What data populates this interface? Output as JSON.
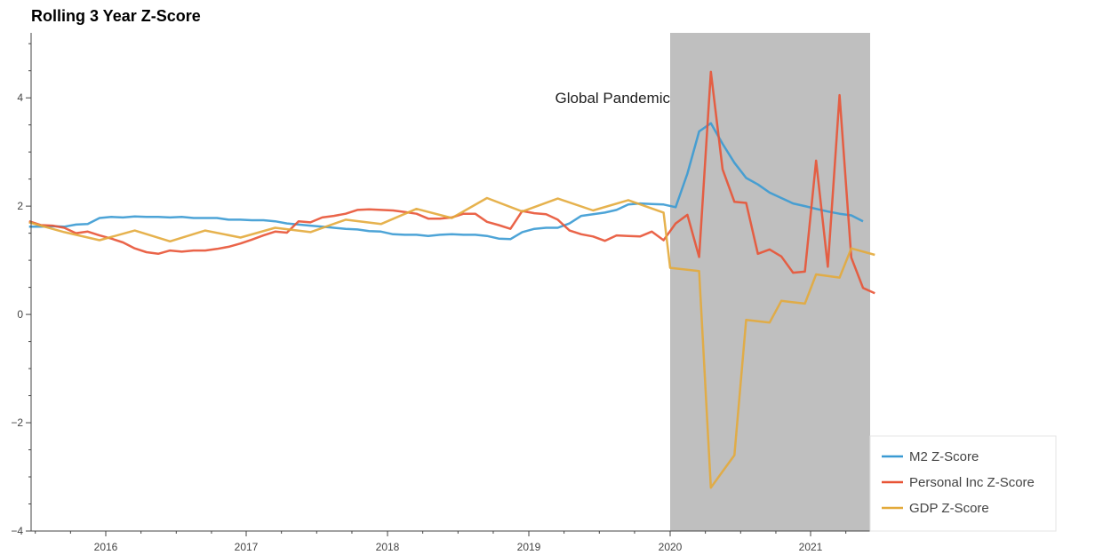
{
  "chart_data": {
    "type": "line",
    "title": "Rolling 3 Year Z-Score",
    "xlabel": "",
    "ylabel": "",
    "x_range": [
      "2015-06-15",
      "2021-06-15"
    ],
    "ylim": [
      -4,
      5.2
    ],
    "x_ticks": [
      "2016",
      "2017",
      "2018",
      "2019",
      "2020",
      "2021"
    ],
    "y_ticks": [
      -4,
      -2,
      0,
      2,
      4
    ],
    "y_tick_labels": [
      "−4",
      "−2",
      "0",
      "2",
      "4"
    ],
    "grid": false,
    "legend_position": "bottom-right",
    "shaded_region": {
      "x_start": "2020-01-01",
      "x_end": "2021-06-15",
      "color": "#bfbfbf"
    },
    "annotations": [
      {
        "text": "Global Pandemic",
        "x": "2020-01-01",
        "y": 4.0,
        "align": "right"
      }
    ],
    "series": [
      {
        "name": "M2 Z-Score",
        "color": "#3a9ad3",
        "points": [
          [
            "2015-06-15",
            1.62
          ],
          [
            "2015-07-15",
            1.62
          ],
          [
            "2015-08-15",
            1.63
          ],
          [
            "2015-09-15",
            1.62
          ],
          [
            "2015-10-15",
            1.66
          ],
          [
            "2015-11-15",
            1.67
          ],
          [
            "2015-12-15",
            1.78
          ],
          [
            "2016-01-15",
            1.8
          ],
          [
            "2016-02-15",
            1.79
          ],
          [
            "2016-03-15",
            1.81
          ],
          [
            "2016-04-15",
            1.8
          ],
          [
            "2016-05-15",
            1.8
          ],
          [
            "2016-06-15",
            1.79
          ],
          [
            "2016-07-15",
            1.8
          ],
          [
            "2016-08-15",
            1.78
          ],
          [
            "2016-09-15",
            1.78
          ],
          [
            "2016-10-15",
            1.78
          ],
          [
            "2016-11-15",
            1.75
          ],
          [
            "2016-12-15",
            1.75
          ],
          [
            "2017-01-15",
            1.74
          ],
          [
            "2017-02-15",
            1.74
          ],
          [
            "2017-03-15",
            1.72
          ],
          [
            "2017-04-15",
            1.68
          ],
          [
            "2017-05-15",
            1.66
          ],
          [
            "2017-06-15",
            1.64
          ],
          [
            "2017-07-15",
            1.62
          ],
          [
            "2017-08-15",
            1.6
          ],
          [
            "2017-09-15",
            1.58
          ],
          [
            "2017-10-15",
            1.57
          ],
          [
            "2017-11-15",
            1.54
          ],
          [
            "2017-12-15",
            1.53
          ],
          [
            "2018-01-15",
            1.48
          ],
          [
            "2018-02-15",
            1.47
          ],
          [
            "2018-03-15",
            1.47
          ],
          [
            "2018-04-15",
            1.45
          ],
          [
            "2018-05-15",
            1.47
          ],
          [
            "2018-06-15",
            1.48
          ],
          [
            "2018-07-15",
            1.47
          ],
          [
            "2018-08-15",
            1.47
          ],
          [
            "2018-09-15",
            1.45
          ],
          [
            "2018-10-15",
            1.4
          ],
          [
            "2018-11-15",
            1.39
          ],
          [
            "2018-12-15",
            1.52
          ],
          [
            "2019-01-15",
            1.58
          ],
          [
            "2019-02-15",
            1.6
          ],
          [
            "2019-03-15",
            1.6
          ],
          [
            "2019-04-15",
            1.68
          ],
          [
            "2019-05-15",
            1.82
          ],
          [
            "2019-06-15",
            1.85
          ],
          [
            "2019-07-15",
            1.88
          ],
          [
            "2019-08-15",
            1.93
          ],
          [
            "2019-09-15",
            2.03
          ],
          [
            "2019-10-15",
            2.05
          ],
          [
            "2019-11-15",
            2.04
          ],
          [
            "2019-12-15",
            2.03
          ],
          [
            "2020-01-15",
            1.98
          ],
          [
            "2020-02-15",
            2.6
          ],
          [
            "2020-03-15",
            3.38
          ],
          [
            "2020-04-15",
            3.53
          ],
          [
            "2020-05-15",
            3.15
          ],
          [
            "2020-06-15",
            2.8
          ],
          [
            "2020-07-15",
            2.52
          ],
          [
            "2020-08-15",
            2.4
          ],
          [
            "2020-09-15",
            2.25
          ],
          [
            "2020-10-15",
            2.15
          ],
          [
            "2020-11-15",
            2.05
          ],
          [
            "2020-12-15",
            2.0
          ],
          [
            "2021-01-15",
            1.95
          ],
          [
            "2021-02-15",
            1.9
          ],
          [
            "2021-03-15",
            1.86
          ],
          [
            "2021-04-15",
            1.83
          ],
          [
            "2021-05-15",
            1.72
          ]
        ]
      },
      {
        "name": "Personal Inc Z-Score",
        "color": "#e85335",
        "points": [
          [
            "2015-06-15",
            1.72
          ],
          [
            "2015-07-15",
            1.65
          ],
          [
            "2015-08-15",
            1.64
          ],
          [
            "2015-09-15",
            1.6
          ],
          [
            "2015-10-15",
            1.5
          ],
          [
            "2015-11-15",
            1.53
          ],
          [
            "2015-12-15",
            1.46
          ],
          [
            "2016-01-15",
            1.4
          ],
          [
            "2016-02-15",
            1.33
          ],
          [
            "2016-03-15",
            1.22
          ],
          [
            "2016-04-15",
            1.15
          ],
          [
            "2016-05-15",
            1.12
          ],
          [
            "2016-06-15",
            1.18
          ],
          [
            "2016-07-15",
            1.16
          ],
          [
            "2016-08-15",
            1.18
          ],
          [
            "2016-09-15",
            1.18
          ],
          [
            "2016-10-15",
            1.21
          ],
          [
            "2016-11-15",
            1.25
          ],
          [
            "2016-12-15",
            1.31
          ],
          [
            "2017-01-15",
            1.38
          ],
          [
            "2017-02-15",
            1.46
          ],
          [
            "2017-03-15",
            1.53
          ],
          [
            "2017-04-15",
            1.51
          ],
          [
            "2017-05-15",
            1.72
          ],
          [
            "2017-06-15",
            1.7
          ],
          [
            "2017-07-15",
            1.79
          ],
          [
            "2017-08-15",
            1.82
          ],
          [
            "2017-09-15",
            1.86
          ],
          [
            "2017-10-15",
            1.93
          ],
          [
            "2017-11-15",
            1.94
          ],
          [
            "2017-12-15",
            1.93
          ],
          [
            "2018-01-15",
            1.92
          ],
          [
            "2018-02-15",
            1.89
          ],
          [
            "2018-03-15",
            1.86
          ],
          [
            "2018-04-15",
            1.77
          ],
          [
            "2018-05-15",
            1.77
          ],
          [
            "2018-06-15",
            1.79
          ],
          [
            "2018-07-15",
            1.86
          ],
          [
            "2018-08-15",
            1.86
          ],
          [
            "2018-09-15",
            1.71
          ],
          [
            "2018-10-15",
            1.65
          ],
          [
            "2018-11-15",
            1.58
          ],
          [
            "2018-12-15",
            1.91
          ],
          [
            "2019-01-15",
            1.87
          ],
          [
            "2019-02-15",
            1.85
          ],
          [
            "2019-03-15",
            1.75
          ],
          [
            "2019-04-15",
            1.55
          ],
          [
            "2019-05-15",
            1.48
          ],
          [
            "2019-06-15",
            1.44
          ],
          [
            "2019-07-15",
            1.36
          ],
          [
            "2019-08-15",
            1.46
          ],
          [
            "2019-09-15",
            1.45
          ],
          [
            "2019-10-15",
            1.44
          ],
          [
            "2019-11-15",
            1.53
          ],
          [
            "2019-12-15",
            1.37
          ],
          [
            "2020-01-15",
            1.68
          ],
          [
            "2020-02-15",
            1.84
          ],
          [
            "2020-03-15",
            1.06
          ],
          [
            "2020-04-15",
            4.48
          ],
          [
            "2020-05-15",
            2.68
          ],
          [
            "2020-06-15",
            2.08
          ],
          [
            "2020-07-15",
            2.06
          ],
          [
            "2020-08-15",
            1.12
          ],
          [
            "2020-09-15",
            1.2
          ],
          [
            "2020-10-15",
            1.07
          ],
          [
            "2020-11-15",
            0.77
          ],
          [
            "2020-12-15",
            0.79
          ],
          [
            "2021-01-15",
            2.84
          ],
          [
            "2021-02-15",
            0.88
          ],
          [
            "2021-03-15",
            4.05
          ],
          [
            "2021-04-15",
            1.05
          ],
          [
            "2021-05-15",
            0.49
          ],
          [
            "2021-06-15",
            0.39
          ]
        ]
      },
      {
        "name": "GDP Z-Score",
        "color": "#e3aa3b",
        "points": [
          [
            "2015-06-15",
            1.7
          ],
          [
            "2015-09-15",
            1.52
          ],
          [
            "2015-12-15",
            1.37
          ],
          [
            "2016-03-15",
            1.55
          ],
          [
            "2016-06-15",
            1.35
          ],
          [
            "2016-09-15",
            1.55
          ],
          [
            "2016-12-15",
            1.42
          ],
          [
            "2017-03-15",
            1.6
          ],
          [
            "2017-06-15",
            1.52
          ],
          [
            "2017-09-15",
            1.75
          ],
          [
            "2017-12-15",
            1.67
          ],
          [
            "2018-03-15",
            1.95
          ],
          [
            "2018-06-15",
            1.78
          ],
          [
            "2018-09-15",
            2.15
          ],
          [
            "2018-12-15",
            1.9
          ],
          [
            "2019-03-15",
            2.14
          ],
          [
            "2019-06-15",
            1.92
          ],
          [
            "2019-09-15",
            2.11
          ],
          [
            "2019-12-15",
            1.88
          ],
          [
            "2020-01-01",
            0.86
          ],
          [
            "2020-03-15",
            0.8
          ],
          [
            "2020-04-15",
            -3.2
          ],
          [
            "2020-05-15",
            -2.9
          ],
          [
            "2020-06-15",
            -2.6
          ],
          [
            "2020-07-15",
            -0.1
          ],
          [
            "2020-09-15",
            -0.15
          ],
          [
            "2020-10-15",
            0.25
          ],
          [
            "2020-12-15",
            0.2
          ],
          [
            "2021-01-15",
            0.74
          ],
          [
            "2021-03-15",
            0.68
          ],
          [
            "2021-04-15",
            1.22
          ],
          [
            "2021-06-15",
            1.1
          ]
        ]
      }
    ]
  }
}
